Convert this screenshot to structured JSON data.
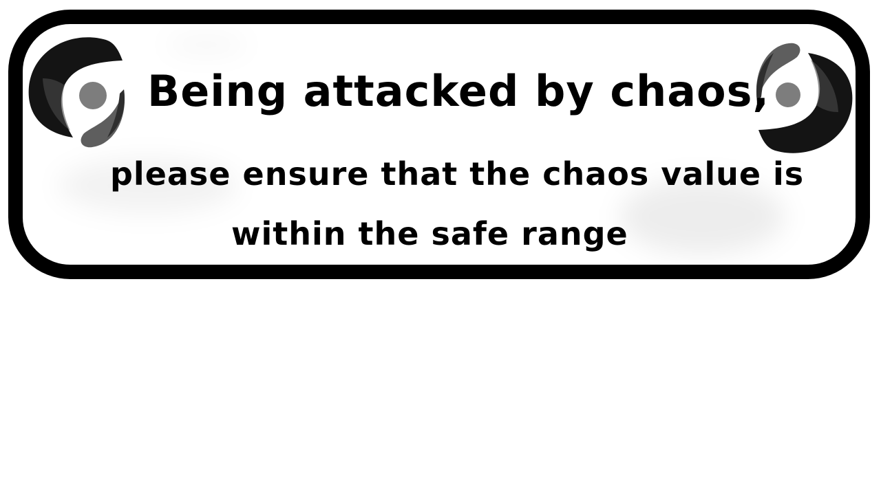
{
  "notice": {
    "title": "Being attacked by chaos,",
    "line1": "please ensure that the chaos value is",
    "line2": "within the safe range",
    "border_color": "#000000",
    "panel_color": "#ffffff",
    "icons": {
      "left": "chaos-swirl-icon",
      "right": "chaos-swirl-icon"
    }
  }
}
